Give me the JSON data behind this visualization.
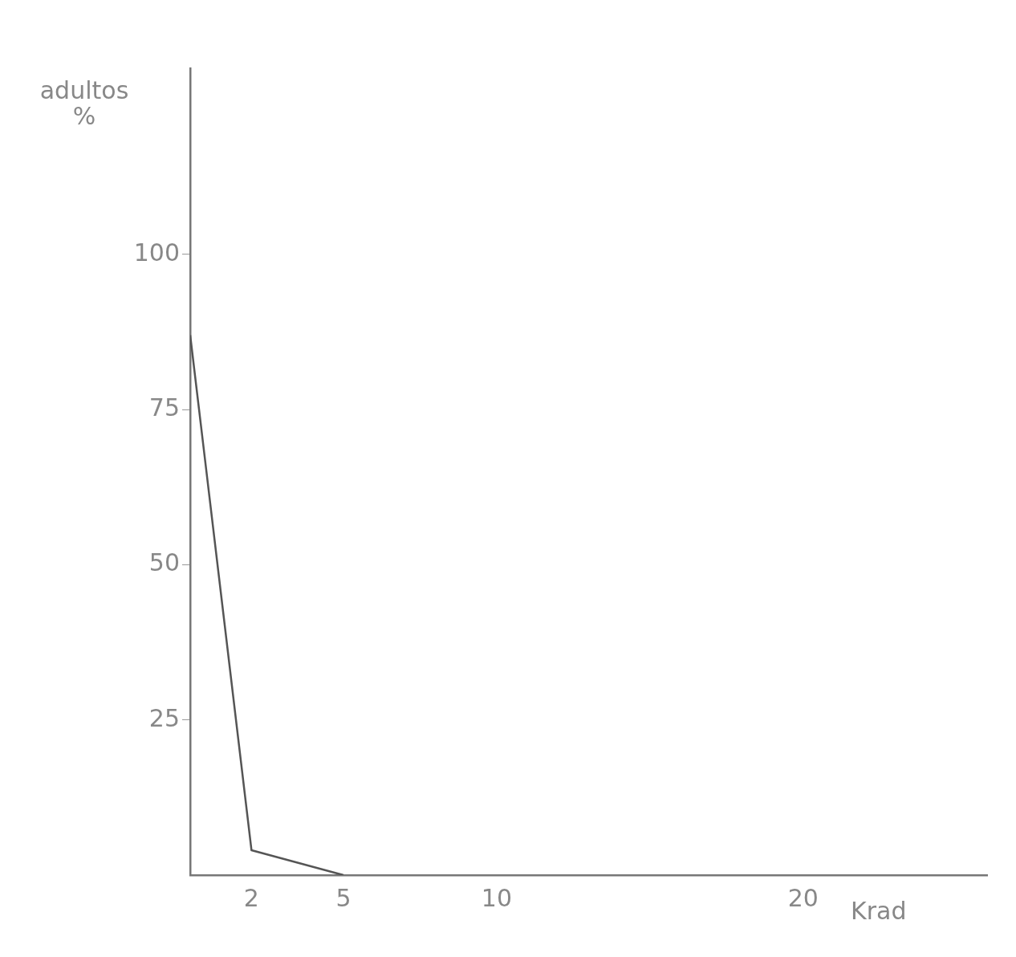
{
  "chart_data": {
    "type": "line",
    "xlabel": "Krad",
    "ylabel": "adultos\n%",
    "x": [
      0,
      2,
      5
    ],
    "series": [
      {
        "color": "#555555",
        "values": [
          87,
          4,
          0
        ]
      }
    ],
    "xlim": [
      0,
      26
    ],
    "ylim": [
      0,
      130
    ],
    "xticks": [
      2,
      5,
      10,
      20
    ],
    "yticks": [
      25,
      50,
      75,
      100
    ],
    "grid": false,
    "legend": false,
    "marker": "none",
    "line_style": "solid"
  }
}
